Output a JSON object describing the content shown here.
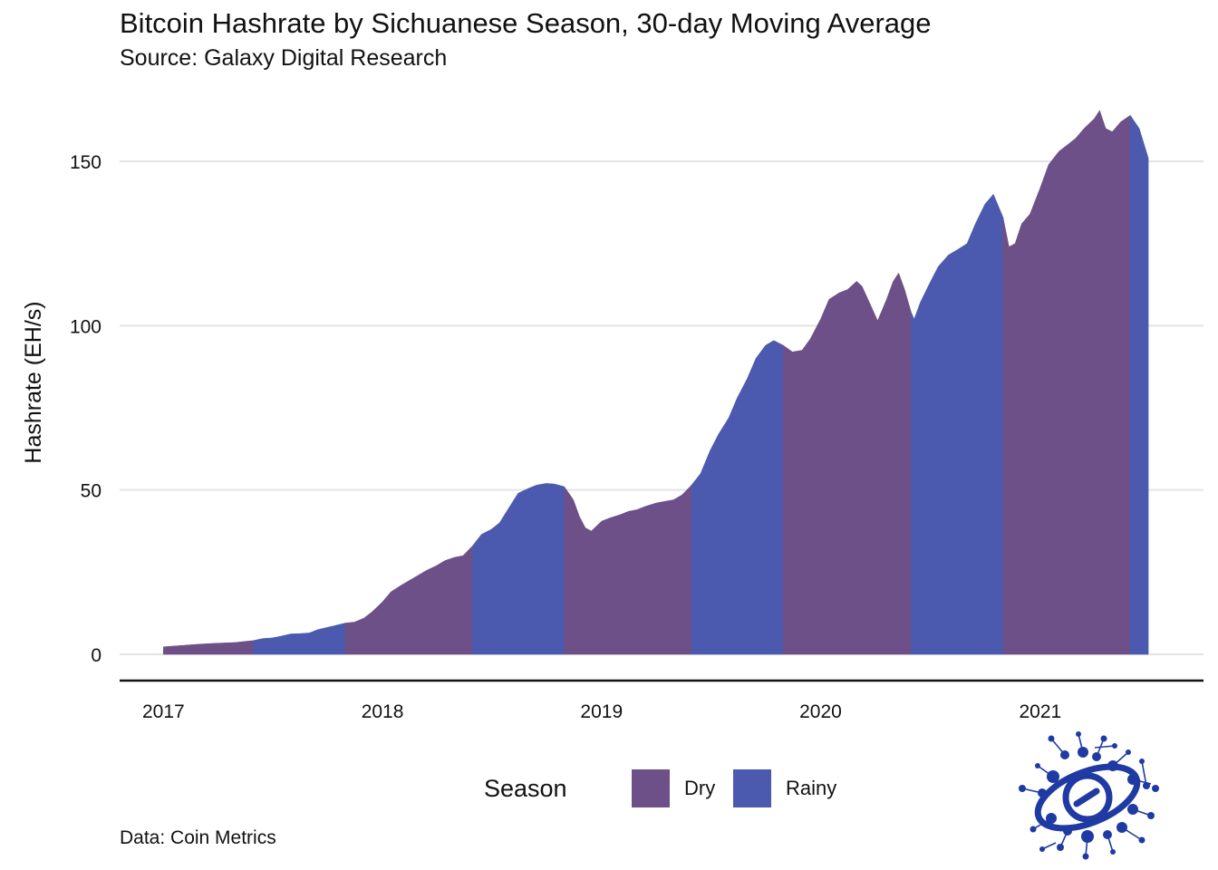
{
  "chart_data": {
    "type": "area",
    "title": "Bitcoin Hashrate by Sichuanese Season, 30-day Moving Average",
    "subtitle": "Source: Galaxy Digital Research",
    "caption": "Data: Coin Metrics",
    "ylabel": "Hashrate (EH/s)",
    "xlabel": "",
    "x_ticks": [
      "2017",
      "2018",
      "2019",
      "2020",
      "2021"
    ],
    "y_ticks": [
      0,
      50,
      100,
      150
    ],
    "ylim": [
      0,
      165
    ],
    "xlim": [
      "2016-10-20",
      "2021-09-30"
    ],
    "grid": "horizontal",
    "legend": {
      "title": "Season",
      "placement": "bottom",
      "items": [
        {
          "name": "Dry",
          "color": "#6e5089"
        },
        {
          "name": "Rainy",
          "color": "#4b5aae"
        }
      ]
    },
    "segments": [
      {
        "season": "Dry",
        "start": "2017-01-01",
        "end": "2017-05-31"
      },
      {
        "season": "Rainy",
        "start": "2017-05-31",
        "end": "2017-10-31"
      },
      {
        "season": "Dry",
        "start": "2017-10-31",
        "end": "2018-05-31"
      },
      {
        "season": "Rainy",
        "start": "2018-05-31",
        "end": "2018-10-31"
      },
      {
        "season": "Dry",
        "start": "2018-10-31",
        "end": "2019-05-31"
      },
      {
        "season": "Rainy",
        "start": "2019-05-31",
        "end": "2019-10-31"
      },
      {
        "season": "Dry",
        "start": "2019-10-31",
        "end": "2020-05-31"
      },
      {
        "season": "Rainy",
        "start": "2020-05-31",
        "end": "2020-10-31"
      },
      {
        "season": "Dry",
        "start": "2020-10-31",
        "end": "2021-05-31"
      },
      {
        "season": "Rainy",
        "start": "2021-05-31",
        "end": "2021-06-30"
      }
    ],
    "series": [
      {
        "points": [
          [
            "2017-01-01",
            2.3
          ],
          [
            "2017-02-01",
            2.7
          ],
          [
            "2017-03-01",
            3.1
          ],
          [
            "2017-04-01",
            3.4
          ],
          [
            "2017-05-01",
            3.6
          ],
          [
            "2017-05-31",
            4.2
          ],
          [
            "2017-06-15",
            4.8
          ],
          [
            "2017-07-01",
            5.0
          ],
          [
            "2017-07-15",
            5.5
          ],
          [
            "2017-08-01",
            6.2
          ],
          [
            "2017-08-15",
            6.3
          ],
          [
            "2017-09-01",
            6.5
          ],
          [
            "2017-09-15",
            7.5
          ],
          [
            "2017-10-01",
            8.2
          ],
          [
            "2017-10-15",
            8.8
          ],
          [
            "2017-10-31",
            9.5
          ],
          [
            "2017-11-15",
            9.8
          ],
          [
            "2017-12-01",
            11.0
          ],
          [
            "2017-12-15",
            13.0
          ],
          [
            "2018-01-01",
            16.0
          ],
          [
            "2018-01-15",
            19.0
          ],
          [
            "2018-02-01",
            21.0
          ],
          [
            "2018-02-15",
            22.5
          ],
          [
            "2018-03-01",
            24.0
          ],
          [
            "2018-03-15",
            25.5
          ],
          [
            "2018-04-01",
            27.0
          ],
          [
            "2018-04-15",
            28.5
          ],
          [
            "2018-05-01",
            29.5
          ],
          [
            "2018-05-15",
            30.0
          ],
          [
            "2018-05-31",
            33.0
          ],
          [
            "2018-06-15",
            36.5
          ],
          [
            "2018-07-01",
            38.0
          ],
          [
            "2018-07-15",
            40.0
          ],
          [
            "2018-08-01",
            45.0
          ],
          [
            "2018-08-15",
            49.0
          ],
          [
            "2018-09-01",
            50.5
          ],
          [
            "2018-09-15",
            51.5
          ],
          [
            "2018-10-01",
            52.0
          ],
          [
            "2018-10-15",
            51.8
          ],
          [
            "2018-10-31",
            51.0
          ],
          [
            "2018-11-15",
            47.0
          ],
          [
            "2018-11-25",
            42.0
          ],
          [
            "2018-12-05",
            38.5
          ],
          [
            "2018-12-15",
            37.5
          ],
          [
            "2019-01-01",
            40.5
          ],
          [
            "2019-01-15",
            41.5
          ],
          [
            "2019-02-01",
            42.5
          ],
          [
            "2019-02-15",
            43.5
          ],
          [
            "2019-03-01",
            44.0
          ],
          [
            "2019-03-15",
            45.0
          ],
          [
            "2019-04-01",
            46.0
          ],
          [
            "2019-04-15",
            46.5
          ],
          [
            "2019-05-01",
            47.0
          ],
          [
            "2019-05-15",
            48.5
          ],
          [
            "2019-05-31",
            51.5
          ],
          [
            "2019-06-15",
            55.0
          ],
          [
            "2019-07-01",
            62.0
          ],
          [
            "2019-07-15",
            67.0
          ],
          [
            "2019-08-01",
            72.0
          ],
          [
            "2019-08-15",
            78.0
          ],
          [
            "2019-09-01",
            84.0
          ],
          [
            "2019-09-15",
            90.0
          ],
          [
            "2019-10-01",
            94.0
          ],
          [
            "2019-10-15",
            95.5
          ],
          [
            "2019-10-31",
            94.0
          ],
          [
            "2019-11-15",
            92.0
          ],
          [
            "2019-12-01",
            92.5
          ],
          [
            "2019-12-15",
            96.0
          ],
          [
            "2020-01-01",
            102.0
          ],
          [
            "2020-01-15",
            108.0
          ],
          [
            "2020-02-01",
            110.0
          ],
          [
            "2020-02-15",
            111.0
          ],
          [
            "2020-03-01",
            113.5
          ],
          [
            "2020-03-10",
            112.0
          ],
          [
            "2020-03-25",
            106.0
          ],
          [
            "2020-04-05",
            101.5
          ],
          [
            "2020-04-20",
            108.0
          ],
          [
            "2020-05-01",
            113.5
          ],
          [
            "2020-05-10",
            116.0
          ],
          [
            "2020-05-20",
            111.0
          ],
          [
            "2020-05-31",
            104.0
          ],
          [
            "2020-06-05",
            102.0
          ],
          [
            "2020-06-15",
            107.0
          ],
          [
            "2020-07-01",
            113.0
          ],
          [
            "2020-07-15",
            118.0
          ],
          [
            "2020-08-01",
            121.5
          ],
          [
            "2020-08-15",
            123.0
          ],
          [
            "2020-09-01",
            125.0
          ],
          [
            "2020-09-15",
            131.0
          ],
          [
            "2020-10-01",
            137.0
          ],
          [
            "2020-10-15",
            140.0
          ],
          [
            "2020-10-31",
            133.0
          ],
          [
            "2020-11-10",
            124.0
          ],
          [
            "2020-11-20",
            125.0
          ],
          [
            "2020-12-01",
            131.0
          ],
          [
            "2020-12-15",
            134.0
          ],
          [
            "2021-01-01",
            142.0
          ],
          [
            "2021-01-15",
            149.0
          ],
          [
            "2021-02-01",
            153.0
          ],
          [
            "2021-02-15",
            155.0
          ],
          [
            "2021-03-01",
            157.0
          ],
          [
            "2021-03-15",
            160.0
          ],
          [
            "2021-04-01",
            163.0
          ],
          [
            "2021-04-10",
            165.5
          ],
          [
            "2021-04-20",
            160.0
          ],
          [
            "2021-05-01",
            159.0
          ],
          [
            "2021-05-15",
            162.0
          ],
          [
            "2021-05-31",
            164.0
          ],
          [
            "2021-06-15",
            160.0
          ],
          [
            "2021-06-30",
            151.0
          ]
        ]
      }
    ]
  },
  "logo": {
    "name": "galaxy-digital-logo",
    "color": "#1f3aa3"
  }
}
